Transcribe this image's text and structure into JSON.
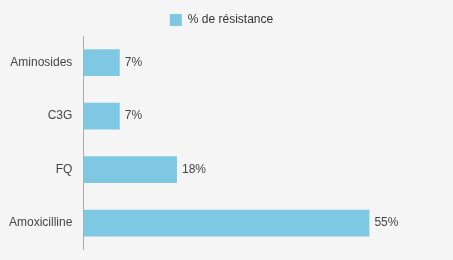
{
  "chart_data": {
    "type": "bar",
    "orientation": "horizontal",
    "categories": [
      "Amoxicilline",
      "FQ",
      "C3G",
      "Aminosides"
    ],
    "series": [
      {
        "name": "% de résistance",
        "color": "#7EC8E3",
        "values": [
          55,
          18,
          7,
          7
        ]
      }
    ],
    "value_labels": [
      "55%",
      "18%",
      "7%",
      "7%"
    ],
    "data_labels": true,
    "xlim": [
      0,
      68
    ],
    "grid": false,
    "legend": "top",
    "tick_labels": "y"
  }
}
